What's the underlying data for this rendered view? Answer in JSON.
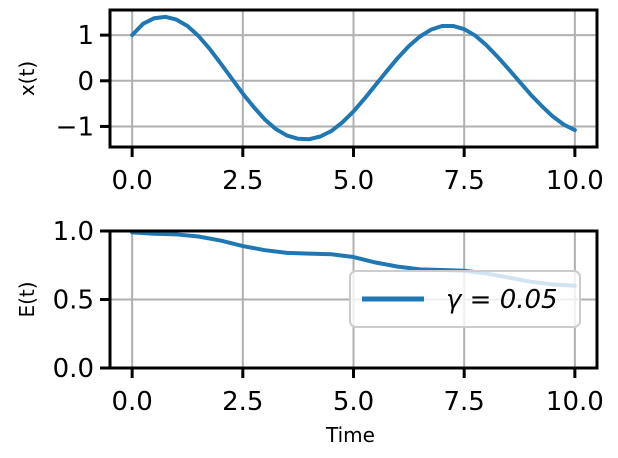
{
  "chart_data": [
    {
      "type": "line",
      "ylabel": "x(t)",
      "xlabel": "",
      "xlim": [
        -0.5,
        10.5
      ],
      "ylim": [
        -1.45,
        1.55
      ],
      "xticks": [
        "0.0",
        "2.5",
        "5.0",
        "7.5",
        "10.0"
      ],
      "yticks": [
        "1",
        "0",
        "−1"
      ],
      "grid": true,
      "series": [
        {
          "color": "#1f77b4",
          "x": [
            0,
            0.25,
            0.5,
            0.75,
            1.0,
            1.25,
            1.5,
            1.75,
            2.0,
            2.25,
            2.5,
            2.75,
            3.0,
            3.25,
            3.5,
            3.75,
            4.0,
            4.25,
            4.5,
            4.75,
            5.0,
            5.25,
            5.5,
            5.75,
            6.0,
            6.25,
            6.5,
            6.75,
            7.0,
            7.25,
            7.5,
            7.75,
            8.0,
            8.25,
            8.5,
            8.75,
            9.0,
            9.25,
            9.5,
            9.75,
            10.0
          ],
          "y": [
            1.0,
            1.25,
            1.37,
            1.4,
            1.34,
            1.2,
            0.98,
            0.7,
            0.38,
            0.05,
            -0.28,
            -0.58,
            -0.85,
            -1.06,
            -1.2,
            -1.27,
            -1.28,
            -1.22,
            -1.1,
            -0.91,
            -0.67,
            -0.39,
            -0.09,
            0.21,
            0.5,
            0.76,
            0.97,
            1.12,
            1.2,
            1.2,
            1.13,
            0.99,
            0.78,
            0.53,
            0.26,
            -0.02,
            -0.3,
            -0.55,
            -0.78,
            -0.96,
            -1.08
          ]
        }
      ]
    },
    {
      "type": "line",
      "ylabel": "E(t)",
      "xlabel": "Time",
      "xlim": [
        -0.5,
        10.5
      ],
      "ylim": [
        0.0,
        1.0
      ],
      "xticks": [
        "0.0",
        "2.5",
        "5.0",
        "7.5",
        "10.0"
      ],
      "yticks": [
        "1.0",
        "0.5",
        "0.0"
      ],
      "grid": true,
      "legend": "center-right",
      "series": [
        {
          "name": "γ = 0.05",
          "color": "#1f77b4",
          "x": [
            0,
            0.5,
            1.0,
            1.5,
            2.0,
            2.5,
            3.0,
            3.5,
            4.0,
            4.5,
            5.0,
            5.5,
            6.0,
            6.5,
            7.0,
            7.5,
            8.0,
            8.5,
            9.0,
            9.5,
            10.0
          ],
          "y": [
            0.99,
            0.98,
            0.975,
            0.96,
            0.93,
            0.89,
            0.86,
            0.84,
            0.835,
            0.83,
            0.81,
            0.77,
            0.74,
            0.72,
            0.715,
            0.71,
            0.69,
            0.66,
            0.63,
            0.61,
            0.6
          ]
        }
      ]
    }
  ]
}
